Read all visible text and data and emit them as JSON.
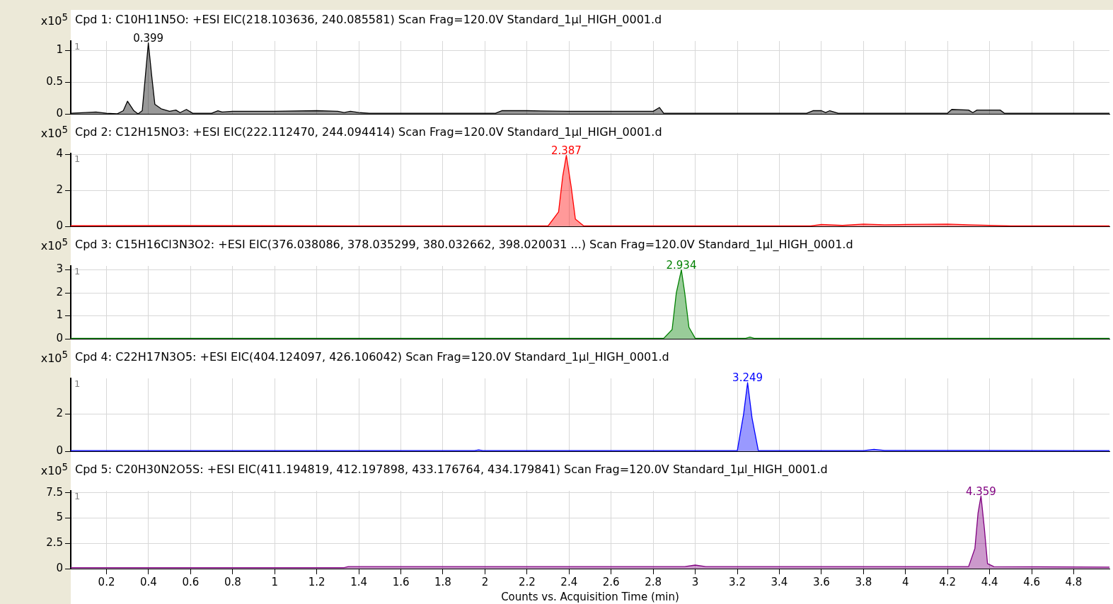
{
  "chart_data": [
    {
      "type": "area",
      "title": "Cpd  1:  C10H11N5O:  +ESI  EIC(218.103636,  240.085581)  Scan  Frag=120.0V  Standard_1µl_HIGH_0001.d",
      "ylabel": "x10$^{5}$",
      "color": "#000000",
      "x": [
        0.03,
        0.1,
        0.15,
        0.2,
        0.25,
        0.28,
        0.3,
        0.33,
        0.35,
        0.37,
        0.385,
        0.399,
        0.415,
        0.43,
        0.46,
        0.5,
        0.53,
        0.55,
        0.58,
        0.61,
        0.7,
        0.73,
        0.75,
        0.8,
        1.0,
        1.2,
        1.3,
        1.33,
        1.36,
        1.4,
        1.45,
        2.05,
        2.08,
        2.2,
        2.4,
        2.8,
        2.83,
        2.85,
        2.87,
        3.53,
        3.56,
        3.6,
        3.62,
        3.64,
        3.68,
        4.2,
        4.22,
        4.3,
        4.32,
        4.34,
        4.45,
        4.47,
        4.97
      ],
      "values": [
        0.01,
        0.02,
        0.03,
        0.01,
        0,
        0.05,
        0.2,
        0.05,
        0,
        0.05,
        0.6,
        1.12,
        0.6,
        0.15,
        0.08,
        0.04,
        0.06,
        0.02,
        0.07,
        0.01,
        0.01,
        0.05,
        0.03,
        0.04,
        0.04,
        0.05,
        0.04,
        0.02,
        0.04,
        0.02,
        0.01,
        0.01,
        0.05,
        0.05,
        0.04,
        0.04,
        0.1,
        0.01,
        0.01,
        0.01,
        0.05,
        0.05,
        0.02,
        0.05,
        0.01,
        0.01,
        0.07,
        0.06,
        0.02,
        0.06,
        0.06,
        0.01,
        0.01
      ],
      "xlim": [
        0.03,
        4.97
      ],
      "xticks": [
        0.2,
        0.4,
        0.6,
        0.8,
        1,
        1.2,
        1.4,
        1.6,
        1.8,
        2,
        2.2,
        2.4,
        2.6,
        2.8,
        3,
        3.2,
        3.4,
        3.6,
        3.8,
        4,
        4.2,
        4.4,
        4.6,
        4.8
      ],
      "ylim": [
        0,
        1.15
      ],
      "yticks": [
        0,
        0.5,
        1
      ],
      "grid": true,
      "tick_labels": "y",
      "annotations": [
        "1",
        {
          "text": "0.399",
          "x": 0.399,
          "y": 1.12
        }
      ]
    },
    {
      "type": "area",
      "title": "Cpd  2:  C12H15NO3:  +ESI  EIC(222.112470,  244.094414)  Scan  Frag=120.0V  Standard_1µl_HIGH_0001.d",
      "ylabel": "x10$^{5}$",
      "color": "#ff0000",
      "x": [
        0.03,
        0.5,
        1.0,
        1.5,
        2.0,
        2.3,
        2.35,
        2.37,
        2.387,
        2.41,
        2.43,
        2.47,
        3.0,
        3.55,
        3.6,
        3.7,
        3.8,
        3.9,
        4.0,
        4.2,
        4.3,
        4.5,
        4.97
      ],
      "values": [
        0.03,
        0.04,
        0.03,
        0.02,
        0.02,
        0.02,
        0.8,
        2.8,
        3.95,
        2.2,
        0.4,
        0.02,
        0.02,
        0.02,
        0.1,
        0.05,
        0.12,
        0.08,
        0.1,
        0.12,
        0.08,
        0.02,
        0.02
      ],
      "xlim": [
        0.03,
        4.97
      ],
      "xticks": [
        0.2,
        0.4,
        0.6,
        0.8,
        1,
        1.2,
        1.4,
        1.6,
        1.8,
        2,
        2.2,
        2.4,
        2.6,
        2.8,
        3,
        3.2,
        3.4,
        3.6,
        3.8,
        4,
        4.2,
        4.4,
        4.6,
        4.8
      ],
      "ylim": [
        0,
        4.05
      ],
      "yticks": [
        0,
        2,
        4
      ],
      "grid": true,
      "tick_labels": "y",
      "annotations": [
        "1",
        {
          "text": "2.387",
          "x": 2.387,
          "y": 3.95
        }
      ]
    },
    {
      "type": "area",
      "title": "Cpd  3:  C15H16Cl3N3O2:  +ESI  EIC(376.038086,  378.035299,  380.032662,  398.020031  ...)  Scan  Frag=120.0V  Standard_1µl_HIGH_0001.d",
      "ylabel": "x10$^{5}$",
      "color": "#008000",
      "x": [
        0.03,
        1.0,
        2.0,
        2.85,
        2.89,
        2.91,
        2.934,
        2.95,
        2.97,
        3.0,
        3.24,
        3.26,
        3.28,
        4.97
      ],
      "values": [
        0.02,
        0.02,
        0.02,
        0.02,
        0.4,
        2.0,
        3.0,
        2.0,
        0.5,
        0.02,
        0.02,
        0.07,
        0.02,
        0.02
      ],
      "xlim": [
        0.03,
        4.97
      ],
      "xticks": [
        0.2,
        0.4,
        0.6,
        0.8,
        1,
        1.2,
        1.4,
        1.6,
        1.8,
        2,
        2.2,
        2.4,
        2.6,
        2.8,
        3,
        3.2,
        3.4,
        3.6,
        3.8,
        4,
        4.2,
        4.4,
        4.6,
        4.8
      ],
      "ylim": [
        0,
        3.17
      ],
      "yticks": [
        0,
        1,
        2,
        3
      ],
      "grid": true,
      "tick_labels": "y",
      "annotations": [
        "1",
        {
          "text": "2.934",
          "x": 2.934,
          "y": 3.0
        }
      ]
    },
    {
      "type": "area",
      "title": "Cpd  4:  C22H17N3O5:  +ESI  EIC(404.124097,  426.106042)  Scan  Frag=120.0V  Standard_1µl_HIGH_0001.d",
      "ylabel": "x10$^{5}$",
      "color": "#0000ff",
      "x": [
        0.03,
        1.0,
        1.95,
        1.97,
        1.99,
        3.0,
        3.2,
        3.23,
        3.249,
        3.27,
        3.3,
        3.8,
        3.85,
        3.9,
        4.3,
        4.97
      ],
      "values": [
        0.03,
        0.03,
        0.03,
        0.07,
        0.03,
        0.03,
        0.03,
        2.0,
        3.7,
        1.8,
        0.03,
        0.03,
        0.1,
        0.04,
        0.04,
        0.03
      ],
      "xlim": [
        0.03,
        4.97
      ],
      "xticks": [
        0.2,
        0.4,
        0.6,
        0.8,
        1,
        1.2,
        1.4,
        1.6,
        1.8,
        2,
        2.2,
        2.4,
        2.6,
        2.8,
        3,
        3.2,
        3.4,
        3.6,
        3.8,
        4,
        4.2,
        4.4,
        4.6,
        4.8
      ],
      "ylim": [
        0,
        3.93
      ],
      "yticks": [
        0,
        2
      ],
      "grid": true,
      "tick_labels": "y",
      "annotations": [
        "1",
        {
          "text": "3.249",
          "x": 3.249,
          "y": 3.7
        }
      ]
    },
    {
      "type": "area",
      "title": "Cpd  5:  C20H30N2O5S:  +ESI  EIC(411.194819,  412.197898,  433.176764,  434.179841)  Scan  Frag=120.0V  Standard_1µl_HIGH_0001.d",
      "ylabel": "x10$^{5}$",
      "xlabel": "Counts vs. Acquisition Time (min)",
      "color": "#800080",
      "x": [
        0.03,
        1.33,
        1.35,
        2.95,
        3.0,
        3.05,
        4.3,
        4.33,
        4.345,
        4.359,
        4.375,
        4.39,
        4.42,
        4.97
      ],
      "values": [
        0.1,
        0.1,
        0.2,
        0.2,
        0.35,
        0.2,
        0.2,
        2.0,
        5.5,
        7.2,
        4.0,
        0.5,
        0.2,
        0.15
      ],
      "xlim": [
        0.03,
        4.97
      ],
      "xticks": [
        0.2,
        0.4,
        0.6,
        0.8,
        1,
        1.2,
        1.4,
        1.6,
        1.8,
        2,
        2.2,
        2.4,
        2.6,
        2.8,
        3,
        3.2,
        3.4,
        3.6,
        3.8,
        4,
        4.2,
        4.4,
        4.6,
        4.8
      ],
      "ylim": [
        0,
        7.7
      ],
      "yticks": [
        0,
        2.5,
        5,
        7.5
      ],
      "grid": true,
      "annotations": [
        "1",
        {
          "text": "4.359",
          "x": 4.359,
          "y": 7.2
        }
      ]
    }
  ]
}
